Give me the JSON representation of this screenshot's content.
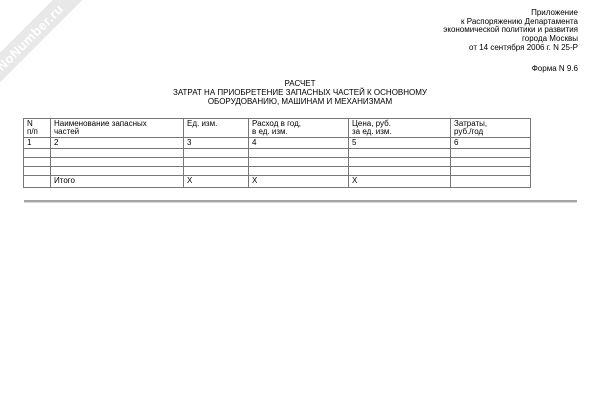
{
  "watermark": {
    "text": "NoNumber.ru",
    "band_color": "#e8e8e8",
    "text_color": "#ffffff"
  },
  "header_right": {
    "lines": [
      "Приложение",
      "к Распоряжению Департамента",
      "экономической политики и развития",
      "города Москвы",
      "от 14 сентября 2006 г. N 25-Р"
    ],
    "form_label": "Форма N 9.6"
  },
  "title": {
    "lines": [
      "РАСЧЕТ",
      "ЗАТРАТ НА ПРИОБРЕТЕНИЕ ЗАПАСНЫХ ЧАСТЕЙ К ОСНОВНОМУ",
      "ОБОРУДОВАНИЮ, МАШИНАМ И МЕХАНИЗМАМ"
    ]
  },
  "table": {
    "headers": [
      "N\nп/п",
      "Наименование запасных\nчастей",
      "Ед. изм.",
      "Расход в год,\nв ед. изм.",
      "Цена, руб.\nза ед. изм.",
      "Затраты,\nруб./год"
    ],
    "numbers": [
      "1",
      "2",
      "3",
      "4",
      "5",
      "6"
    ],
    "empty_row_count": 3,
    "total_row": [
      "",
      "Итого",
      "X",
      "X",
      "X",
      ""
    ]
  },
  "colors": {
    "table_border": "#777777",
    "rule": "#a6a6a6"
  }
}
